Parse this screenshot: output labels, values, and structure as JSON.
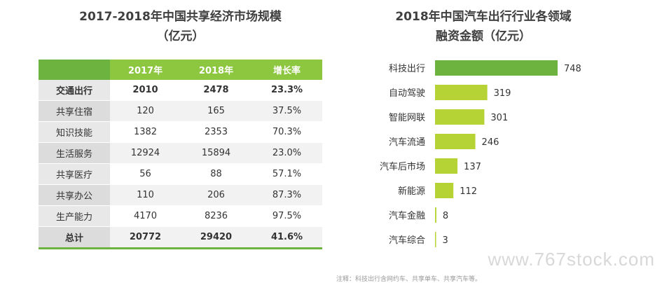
{
  "table_title": "2017-2018年中国共享经济市场规模\n（亿元）",
  "table": {
    "headers": [
      "",
      "2017年",
      "2018年",
      "增长率"
    ],
    "rows": [
      [
        "交通出行",
        "2010",
        "2478",
        "23.3%"
      ],
      [
        "共享住宿",
        "120",
        "165",
        "37.5%"
      ],
      [
        "知识技能",
        "1382",
        "2353",
        "70.3%"
      ],
      [
        "生活服务",
        "12924",
        "15894",
        "23.0%"
      ],
      [
        "共享医疗",
        "56",
        "88",
        "57.1%"
      ],
      [
        "共享办公",
        "110",
        "206",
        "87.3%"
      ],
      [
        "生产能力",
        "4170",
        "8236",
        "97.5%"
      ],
      [
        "总计",
        "20772",
        "29420",
        "41.6%"
      ]
    ]
  },
  "chart_title": "2018年中国汽车出行行业各领域\n融资金额（亿元）",
  "chart_data": {
    "type": "bar",
    "orientation": "horizontal",
    "categories": [
      "科技出行",
      "自动驾驶",
      "智能网联",
      "汽车流通",
      "汽车后市场",
      "新能源",
      "汽车金融",
      "汽车综合"
    ],
    "values": [
      748,
      319,
      301,
      246,
      137,
      112,
      8,
      3
    ],
    "colors": [
      "#6db33f",
      "#b5d334",
      "#b5d334",
      "#b5d334",
      "#b5d334",
      "#b5d334",
      "#b5d334",
      "#b5d334"
    ],
    "xlim": [
      0,
      748
    ],
    "grid": false,
    "legend": "none"
  },
  "watermark": "www.767stock.com",
  "footnote": "注释：科技出行含网约车、共享单车、共享汽车等。"
}
